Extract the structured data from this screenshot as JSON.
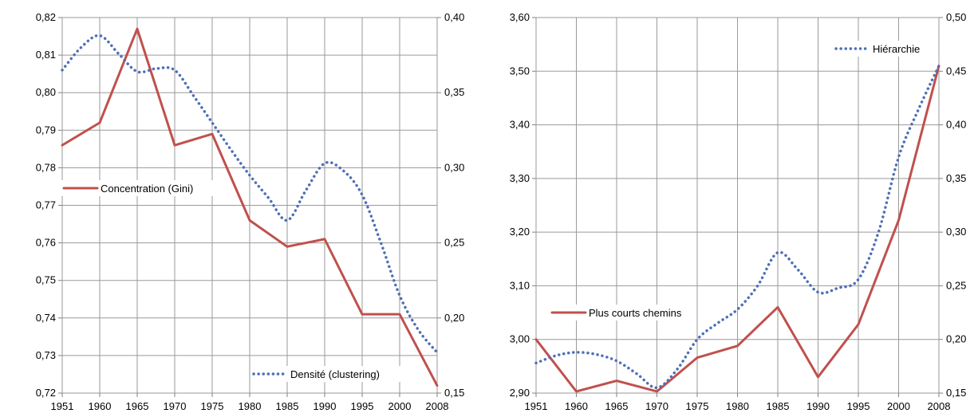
{
  "chart_data": [
    {
      "type": "line",
      "x": [
        "1951",
        "1960",
        "1965",
        "1970",
        "1975",
        "1980",
        "1985",
        "1990",
        "1995",
        "2000",
        "2008"
      ],
      "y_left": {
        "range": [
          0.72,
          0.82
        ],
        "ticks": [
          "0,72",
          "0,73",
          "0,74",
          "0,75",
          "0,76",
          "0,77",
          "0,78",
          "0,79",
          "0,80",
          "0,81",
          "0,82"
        ]
      },
      "y_right": {
        "range": [
          0.15,
          0.4
        ],
        "ticks": [
          "0,15",
          "0,20",
          "0,25",
          "0,30",
          "0,35",
          "0,40"
        ]
      },
      "grid": true,
      "series": [
        {
          "name": "Concentration (Gini)",
          "axis": "left",
          "style": "solid",
          "color": "#c0504d",
          "values": [
            0.786,
            0.792,
            0.817,
            0.786,
            0.789,
            0.766,
            0.759,
            0.761,
            0.741,
            0.741,
            0.722
          ]
        },
        {
          "name": "Densité (clustering)",
          "axis": "right",
          "style": "dotted",
          "color": "#4f6fb5",
          "points": [
            [
              0,
              0.365
            ],
            [
              0.5,
              0.38
            ],
            [
              1,
              0.388
            ],
            [
              1.5,
              0.376
            ],
            [
              2,
              0.364
            ],
            [
              2.5,
              0.366
            ],
            [
              3,
              0.365
            ],
            [
              3.5,
              0.348
            ],
            [
              4,
              0.33
            ],
            [
              4.5,
              0.312
            ],
            [
              5,
              0.295
            ],
            [
              5.5,
              0.28
            ],
            [
              6,
              0.265
            ],
            [
              6.5,
              0.285
            ],
            [
              7,
              0.303
            ],
            [
              7.5,
              0.298
            ],
            [
              8,
              0.282
            ],
            [
              8.5,
              0.25
            ],
            [
              9,
              0.215
            ],
            [
              9.5,
              0.192
            ],
            [
              10,
              0.177
            ]
          ]
        }
      ]
    },
    {
      "type": "line",
      "x": [
        "1951",
        "1960",
        "1965",
        "1970",
        "1975",
        "1980",
        "1985",
        "1990",
        "1995",
        "2000",
        "2008"
      ],
      "y_left": {
        "range": [
          2.9,
          3.6
        ],
        "ticks": [
          "2,90",
          "3,00",
          "3,10",
          "3,20",
          "3,30",
          "3,40",
          "3,50",
          "3,60"
        ]
      },
      "y_right": {
        "range": [
          0.15,
          0.5
        ],
        "ticks": [
          "0,15",
          "0,20",
          "0,25",
          "0,30",
          "0,35",
          "0,40",
          "0,45",
          "0,50"
        ]
      },
      "grid": true,
      "series": [
        {
          "name": "Plus courts chemins",
          "axis": "left",
          "style": "solid",
          "color": "#c0504d",
          "values": [
            3.0,
            2.903,
            2.923,
            2.903,
            2.966,
            2.988,
            3.06,
            2.93,
            3.028,
            3.222,
            3.51
          ]
        },
        {
          "name": "Hiérarchie",
          "axis": "right",
          "style": "dotted",
          "color": "#4f6fb5",
          "points": [
            [
              0,
              0.178
            ],
            [
              0.5,
              0.185
            ],
            [
              1,
              0.188
            ],
            [
              1.5,
              0.186
            ],
            [
              2,
              0.18
            ],
            [
              2.5,
              0.168
            ],
            [
              3,
              0.155
            ],
            [
              3.5,
              0.172
            ],
            [
              4,
              0.2
            ],
            [
              4.5,
              0.215
            ],
            [
              5,
              0.228
            ],
            [
              5.5,
              0.25
            ],
            [
              6,
              0.281
            ],
            [
              6.5,
              0.265
            ],
            [
              7,
              0.244
            ],
            [
              7.5,
              0.248
            ],
            [
              8,
              0.256
            ],
            [
              8.5,
              0.3
            ],
            [
              9,
              0.37
            ],
            [
              9.5,
              0.415
            ],
            [
              10,
              0.455
            ]
          ]
        }
      ]
    }
  ]
}
